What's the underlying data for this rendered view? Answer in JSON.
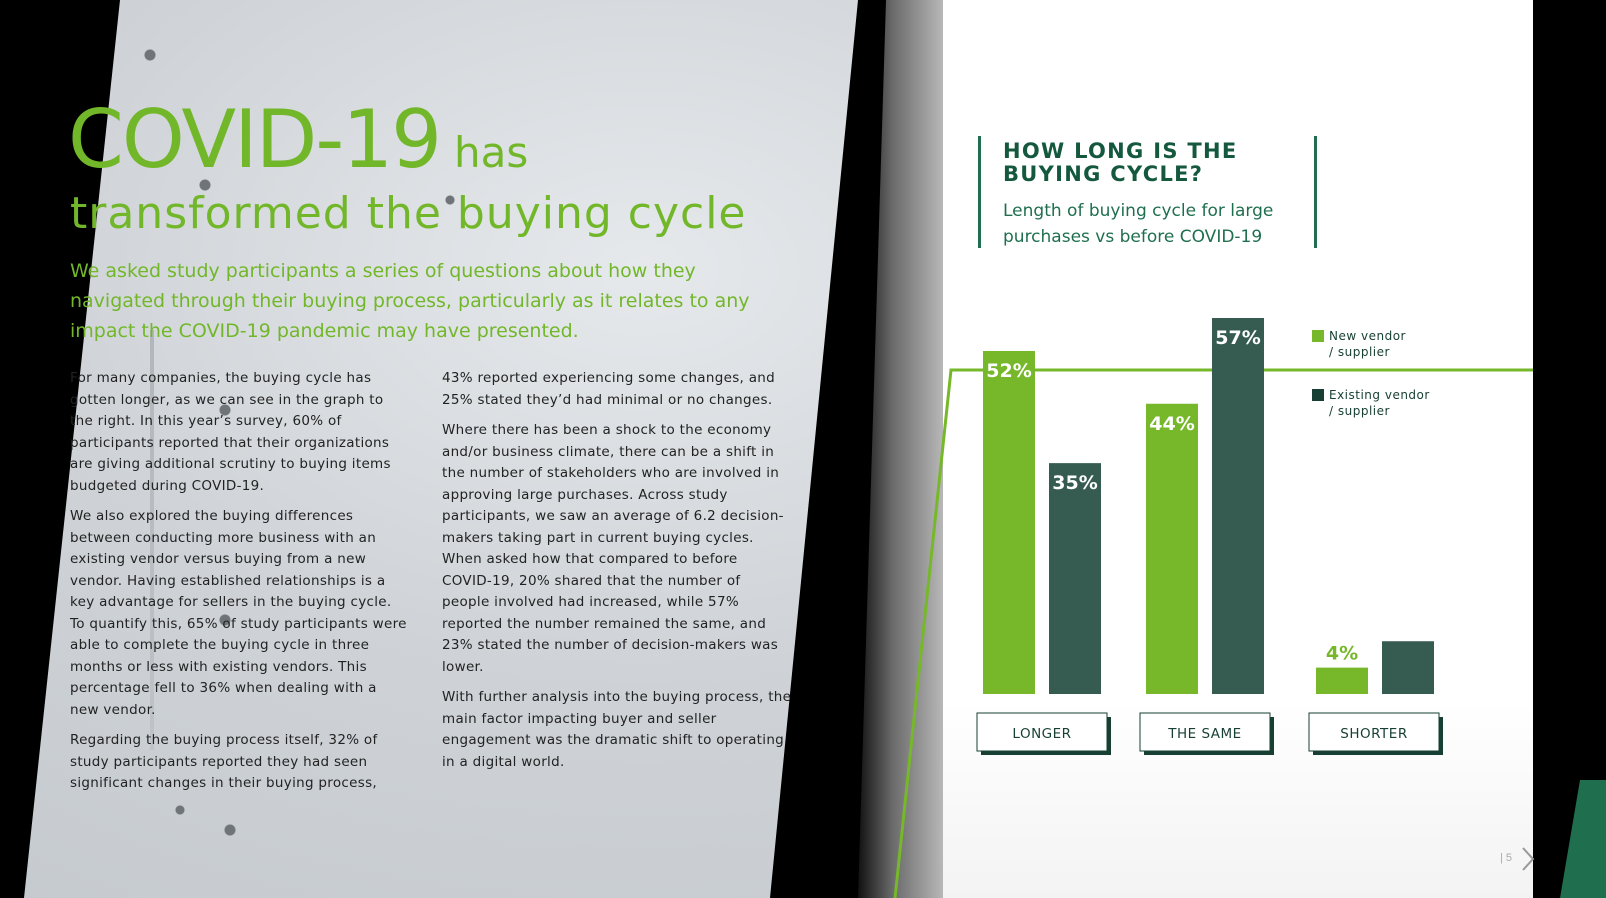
{
  "headline": {
    "big": "COVID-19",
    "small": "has",
    "line2": "transformed the buying cycle"
  },
  "intro": "We asked study participants a series of questions about how they navigated through their buying process, particularly as it relates to any impact the COVID-19 pandemic may have presented.",
  "column1": [
    "For many companies, the buying cycle has gotten longer, as we can see in the graph to the right. In this year’s survey, 60% of participants reported that their organizations are giving additional scrutiny to buying items budgeted during COVID-19.",
    "We also explored the buying differences between conducting more business with an existing vendor versus buying from a new vendor. Having established relationships is a key advantage for sellers in the buying cycle. To quantify this, 65% of study participants were able to complete the buying cycle in three months or less with existing vendors. This percentage fell to 36% when dealing with a new vendor.",
    "Regarding the buying process itself, 32% of study participants reported they had seen significant changes in their buying process,"
  ],
  "column2": [
    "43% reported experiencing some changes, and 25% stated they’d had minimal or no changes.",
    "Where there has been a shock to the economy and/or business climate, there can be a shift in the number of stakeholders who are involved in approving large purchases. Across study participants, we saw an average of 6.2 decision-makers taking part in current buying cycles. When asked how that compared to before COVID-19, 20% shared that the number of people involved had increased, while 57% reported the number remained the same, and 23% stated the number of decision-makers was lower.",
    "With further analysis into the buying process, the main factor impacting buyer and seller engagement was the dramatic shift to operating in a digital world."
  ],
  "chart_data": {
    "type": "bar",
    "title": "HOW LONG IS THE BUYING CYCLE?",
    "subtitle": "Length of buying cycle for large purchases vs before COVID-19",
    "categories": [
      "LONGER",
      "THE SAME",
      "SHORTER"
    ],
    "series": [
      {
        "name": "New vendor / supplier",
        "values": [
          52,
          44,
          4
        ],
        "labels": [
          "52%",
          "44%",
          "4%"
        ],
        "color": "#76b82a"
      },
      {
        "name": "Existing vendor / supplier",
        "values": [
          35,
          57,
          8
        ],
        "labels": [
          "35%",
          "57%",
          "8%"
        ],
        "color": "#365c52"
      }
    ],
    "ylim": [
      0,
      60
    ],
    "legend": "top-right",
    "grid": false
  },
  "page_number": "5",
  "colors": {
    "accent_green": "#76b82a",
    "dark_green": "#14583d",
    "slate_green": "#365c52"
  }
}
